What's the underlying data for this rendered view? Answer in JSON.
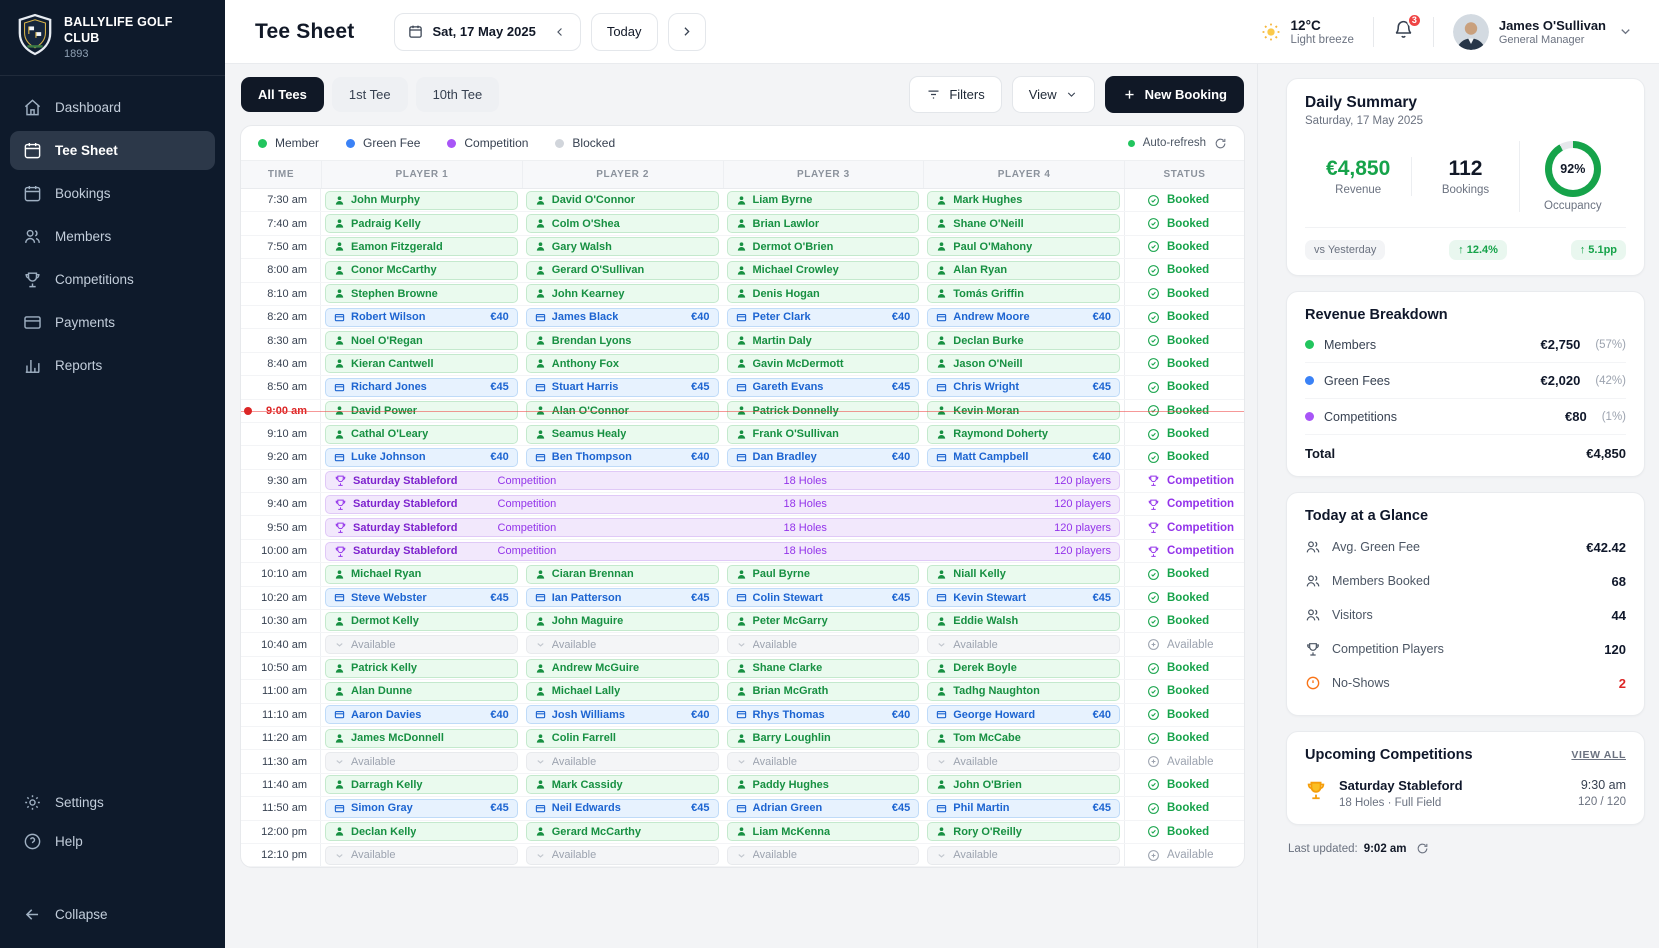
{
  "brand": {
    "name": "BALLYLIFE GOLF CLUB",
    "year": "1893"
  },
  "sidebar": {
    "items": [
      {
        "label": "Dashboard",
        "icon": "home",
        "active": false
      },
      {
        "label": "Tee Sheet",
        "icon": "calendar-check",
        "active": true
      },
      {
        "label": "Bookings",
        "icon": "calendar",
        "active": false
      },
      {
        "label": "Members",
        "icon": "users",
        "active": false
      },
      {
        "label": "Competitions",
        "icon": "trophy",
        "active": false
      },
      {
        "label": "Payments",
        "icon": "credit-card",
        "active": false
      },
      {
        "label": "Reports",
        "icon": "bar-chart",
        "active": false
      }
    ],
    "footer_items": [
      {
        "label": "Settings",
        "icon": "gear"
      },
      {
        "label": "Help",
        "icon": "help"
      }
    ],
    "collapse_label": "Collapse"
  },
  "header": {
    "title": "Tee Sheet",
    "date_label": "Sat, 17 May 2025",
    "today_label": "Today",
    "weather": {
      "temp": "12°C",
      "desc": "Light breeze"
    },
    "notification_count": "3",
    "user": {
      "name": "James O'Sullivan",
      "role": "General Manager"
    }
  },
  "toolbar": {
    "tabs": [
      {
        "label": "All Tees",
        "active": true
      },
      {
        "label": "1st Tee",
        "active": false
      },
      {
        "label": "10th Tee",
        "active": false
      }
    ],
    "filters_label": "Filters",
    "view_label": "View",
    "new_booking_label": "New Booking"
  },
  "legend": {
    "items": [
      {
        "label": "Member",
        "color": "#22c55e"
      },
      {
        "label": "Green Fee",
        "color": "#3b82f6"
      },
      {
        "label": "Competition",
        "color": "#a855f7"
      },
      {
        "label": "Blocked",
        "color": "#d1d5db"
      }
    ],
    "auto_refresh_label": "Auto-refresh"
  },
  "table": {
    "columns": [
      "TIME",
      "PLAYER 1",
      "PLAYER 2",
      "PLAYER 3",
      "PLAYER 4",
      "STATUS"
    ],
    "rows": [
      {
        "time": "7:30 am",
        "type": "players",
        "status": "Booked",
        "status_kind": "booked",
        "players": [
          {
            "kind": "member",
            "name": "John Murphy"
          },
          {
            "kind": "member",
            "name": "David O'Connor"
          },
          {
            "kind": "member",
            "name": "Liam Byrne"
          },
          {
            "kind": "member",
            "name": "Mark Hughes"
          }
        ]
      },
      {
        "time": "7:40 am",
        "type": "players",
        "status": "Booked",
        "status_kind": "booked",
        "players": [
          {
            "kind": "member",
            "name": "Padraig Kelly"
          },
          {
            "kind": "member",
            "name": "Colm O'Shea"
          },
          {
            "kind": "member",
            "name": "Brian Lawlor"
          },
          {
            "kind": "member",
            "name": "Shane O'Neill"
          }
        ]
      },
      {
        "time": "7:50 am",
        "type": "players",
        "status": "Booked",
        "status_kind": "booked",
        "players": [
          {
            "kind": "member",
            "name": "Eamon Fitzgerald"
          },
          {
            "kind": "member",
            "name": "Gary Walsh"
          },
          {
            "kind": "member",
            "name": "Dermot O'Brien"
          },
          {
            "kind": "member",
            "name": "Paul O'Mahony"
          }
        ]
      },
      {
        "time": "8:00 am",
        "type": "players",
        "status": "Booked",
        "status_kind": "booked",
        "players": [
          {
            "kind": "member",
            "name": "Conor McCarthy"
          },
          {
            "kind": "member",
            "name": "Gerard O'Sullivan"
          },
          {
            "kind": "member",
            "name": "Michael Crowley"
          },
          {
            "kind": "member",
            "name": "Alan Ryan"
          }
        ]
      },
      {
        "time": "8:10 am",
        "type": "players",
        "status": "Booked",
        "status_kind": "booked",
        "players": [
          {
            "kind": "member",
            "name": "Stephen Browne"
          },
          {
            "kind": "member",
            "name": "John Kearney"
          },
          {
            "kind": "member",
            "name": "Denis Hogan"
          },
          {
            "kind": "member",
            "name": "Tomás Griffin"
          }
        ]
      },
      {
        "time": "8:20 am",
        "type": "players",
        "status": "Booked",
        "status_kind": "booked",
        "players": [
          {
            "kind": "greenfee",
            "name": "Robert Wilson",
            "fee": "€40"
          },
          {
            "kind": "greenfee",
            "name": "James Black",
            "fee": "€40"
          },
          {
            "kind": "greenfee",
            "name": "Peter Clark",
            "fee": "€40"
          },
          {
            "kind": "greenfee",
            "name": "Andrew Moore",
            "fee": "€40"
          }
        ]
      },
      {
        "time": "8:30 am",
        "type": "players",
        "status": "Booked",
        "status_kind": "booked",
        "players": [
          {
            "kind": "member",
            "name": "Noel O'Regan"
          },
          {
            "kind": "member",
            "name": "Brendan Lyons"
          },
          {
            "kind": "member",
            "name": "Martin Daly"
          },
          {
            "kind": "member",
            "name": "Declan Burke"
          }
        ]
      },
      {
        "time": "8:40 am",
        "type": "players",
        "status": "Booked",
        "status_kind": "booked",
        "players": [
          {
            "kind": "member",
            "name": "Kieran Cantwell"
          },
          {
            "kind": "member",
            "name": "Anthony Fox"
          },
          {
            "kind": "member",
            "name": "Gavin McDermott"
          },
          {
            "kind": "member",
            "name": "Jason O'Neill"
          }
        ]
      },
      {
        "time": "8:50 am",
        "type": "players",
        "status": "Booked",
        "status_kind": "booked",
        "players": [
          {
            "kind": "greenfee",
            "name": "Richard Jones",
            "fee": "€45"
          },
          {
            "kind": "greenfee",
            "name": "Stuart Harris",
            "fee": "€45"
          },
          {
            "kind": "greenfee",
            "name": "Gareth Evans",
            "fee": "€45"
          },
          {
            "kind": "greenfee",
            "name": "Chris Wright",
            "fee": "€45"
          }
        ]
      },
      {
        "time": "9:00 am",
        "type": "players",
        "current": true,
        "status": "Booked",
        "status_kind": "booked",
        "players": [
          {
            "kind": "member",
            "name": "David Power"
          },
          {
            "kind": "member",
            "name": "Alan O'Connor"
          },
          {
            "kind": "member",
            "name": "Patrick Donnelly"
          },
          {
            "kind": "member",
            "name": "Kevin Moran"
          }
        ]
      },
      {
        "time": "9:10 am",
        "type": "players",
        "status": "Booked",
        "status_kind": "booked",
        "players": [
          {
            "kind": "member",
            "name": "Cathal O'Leary"
          },
          {
            "kind": "member",
            "name": "Seamus Healy"
          },
          {
            "kind": "member",
            "name": "Frank O'Sullivan"
          },
          {
            "kind": "member",
            "name": "Raymond Doherty"
          }
        ]
      },
      {
        "time": "9:20 am",
        "type": "players",
        "status": "Booked",
        "status_kind": "booked",
        "players": [
          {
            "kind": "greenfee",
            "name": "Luke Johnson",
            "fee": "€40"
          },
          {
            "kind": "greenfee",
            "name": "Ben Thompson",
            "fee": "€40"
          },
          {
            "kind": "greenfee",
            "name": "Dan Bradley",
            "fee": "€40"
          },
          {
            "kind": "greenfee",
            "name": "Matt Campbell",
            "fee": "€40"
          }
        ]
      },
      {
        "time": "9:30 am",
        "type": "competition",
        "name": "Saturday Stableford",
        "tag": "Competition",
        "holes": "18 Holes",
        "players_count": "120 players",
        "status": "Competition",
        "status_kind": "competition"
      },
      {
        "time": "9:40 am",
        "type": "competition",
        "name": "Saturday Stableford",
        "tag": "Competition",
        "holes": "18 Holes",
        "players_count": "120 players",
        "status": "Competition",
        "status_kind": "competition"
      },
      {
        "time": "9:50 am",
        "type": "competition",
        "name": "Saturday Stableford",
        "tag": "Competition",
        "holes": "18 Holes",
        "players_count": "120 players",
        "status": "Competition",
        "status_kind": "competition"
      },
      {
        "time": "10:00 am",
        "type": "competition",
        "name": "Saturday Stableford",
        "tag": "Competition",
        "holes": "18 Holes",
        "players_count": "120 players",
        "status": "Competition",
        "status_kind": "competition"
      },
      {
        "time": "10:10 am",
        "type": "players",
        "status": "Booked",
        "status_kind": "booked",
        "players": [
          {
            "kind": "member",
            "name": "Michael Ryan"
          },
          {
            "kind": "member",
            "name": "Ciaran Brennan"
          },
          {
            "kind": "member",
            "name": "Paul Byrne"
          },
          {
            "kind": "member",
            "name": "Niall Kelly"
          }
        ]
      },
      {
        "time": "10:20 am",
        "type": "players",
        "status": "Booked",
        "status_kind": "booked",
        "players": [
          {
            "kind": "greenfee",
            "name": "Steve Webster",
            "fee": "€45"
          },
          {
            "kind": "greenfee",
            "name": "Ian Patterson",
            "fee": "€45"
          },
          {
            "kind": "greenfee",
            "name": "Colin Stewart",
            "fee": "€45"
          },
          {
            "kind": "greenfee",
            "name": "Kevin Stewart",
            "fee": "€45"
          }
        ]
      },
      {
        "time": "10:30 am",
        "type": "players",
        "status": "Booked",
        "status_kind": "booked",
        "players": [
          {
            "kind": "member",
            "name": "Dermot Kelly"
          },
          {
            "kind": "member",
            "name": "John Maguire"
          },
          {
            "kind": "member",
            "name": "Peter McGarry"
          },
          {
            "kind": "member",
            "name": "Eddie Walsh"
          }
        ]
      },
      {
        "time": "10:40 am",
        "type": "players",
        "status": "Available",
        "status_kind": "available",
        "players": [
          {
            "kind": "available",
            "label": "Available"
          },
          {
            "kind": "available",
            "label": "Available"
          },
          {
            "kind": "available",
            "label": "Available"
          },
          {
            "kind": "available",
            "label": "Available"
          }
        ]
      },
      {
        "time": "10:50 am",
        "type": "players",
        "status": "Booked",
        "status_kind": "booked",
        "players": [
          {
            "kind": "member",
            "name": "Patrick Kelly"
          },
          {
            "kind": "member",
            "name": "Andrew McGuire"
          },
          {
            "kind": "member",
            "name": "Shane Clarke"
          },
          {
            "kind": "member",
            "name": "Derek Boyle"
          }
        ]
      },
      {
        "time": "11:00 am",
        "type": "players",
        "status": "Booked",
        "status_kind": "booked",
        "players": [
          {
            "kind": "member",
            "name": "Alan Dunne"
          },
          {
            "kind": "member",
            "name": "Michael Lally"
          },
          {
            "kind": "member",
            "name": "Brian McGrath"
          },
          {
            "kind": "member",
            "name": "Tadhg Naughton"
          }
        ]
      },
      {
        "time": "11:10 am",
        "type": "players",
        "status": "Booked",
        "status_kind": "booked",
        "players": [
          {
            "kind": "greenfee",
            "name": "Aaron Davies",
            "fee": "€40"
          },
          {
            "kind": "greenfee",
            "name": "Josh Williams",
            "fee": "€40"
          },
          {
            "kind": "greenfee",
            "name": "Rhys Thomas",
            "fee": "€40"
          },
          {
            "kind": "greenfee",
            "name": "George Howard",
            "fee": "€40"
          }
        ]
      },
      {
        "time": "11:20 am",
        "type": "players",
        "status": "Booked",
        "status_kind": "booked",
        "players": [
          {
            "kind": "member",
            "name": "James McDonnell"
          },
          {
            "kind": "member",
            "name": "Colin Farrell"
          },
          {
            "kind": "member",
            "name": "Barry Loughlin"
          },
          {
            "kind": "member",
            "name": "Tom McCabe"
          }
        ]
      },
      {
        "time": "11:30 am",
        "type": "players",
        "status": "Available",
        "status_kind": "available",
        "players": [
          {
            "kind": "available",
            "label": "Available"
          },
          {
            "kind": "available",
            "label": "Available"
          },
          {
            "kind": "available",
            "label": "Available"
          },
          {
            "kind": "available",
            "label": "Available"
          }
        ]
      },
      {
        "time": "11:40 am",
        "type": "players",
        "status": "Booked",
        "status_kind": "booked",
        "players": [
          {
            "kind": "member",
            "name": "Darragh Kelly"
          },
          {
            "kind": "member",
            "name": "Mark Cassidy"
          },
          {
            "kind": "member",
            "name": "Paddy Hughes"
          },
          {
            "kind": "member",
            "name": "John O'Brien"
          }
        ]
      },
      {
        "time": "11:50 am",
        "type": "players",
        "status": "Booked",
        "status_kind": "booked",
        "players": [
          {
            "kind": "greenfee",
            "name": "Simon Gray",
            "fee": "€45"
          },
          {
            "kind": "greenfee",
            "name": "Neil Edwards",
            "fee": "€45"
          },
          {
            "kind": "greenfee",
            "name": "Adrian Green",
            "fee": "€45"
          },
          {
            "kind": "greenfee",
            "name": "Phil Martin",
            "fee": "€45"
          }
        ]
      },
      {
        "time": "12:00 pm",
        "type": "players",
        "status": "Booked",
        "status_kind": "booked",
        "players": [
          {
            "kind": "member",
            "name": "Declan Kelly"
          },
          {
            "kind": "member",
            "name": "Gerard McCarthy"
          },
          {
            "kind": "member",
            "name": "Liam McKenna"
          },
          {
            "kind": "member",
            "name": "Rory O'Reilly"
          }
        ]
      },
      {
        "time": "12:10 pm",
        "type": "players",
        "status": "Available",
        "status_kind": "available",
        "players": [
          {
            "kind": "available",
            "label": "Available"
          },
          {
            "kind": "available",
            "label": "Available"
          },
          {
            "kind": "available",
            "label": "Available"
          },
          {
            "kind": "available",
            "label": "Available"
          }
        ]
      }
    ]
  },
  "summary": {
    "title": "Daily Summary",
    "date": "Saturday, 17 May 2025",
    "revenue": "€4,850",
    "revenue_label": "Revenue",
    "bookings": "112",
    "bookings_label": "Bookings",
    "occupancy_pct": 92,
    "occupancy": "92%",
    "occupancy_label": "Occupancy",
    "vs_label": "vs Yesterday",
    "revenue_delta": "↑ 12.4%",
    "occupancy_delta": "↑ 5.1pp",
    "accent_green": "#16a34a"
  },
  "breakdown": {
    "title": "Revenue Breakdown",
    "rows": [
      {
        "label": "Members",
        "value": "€2,750",
        "pct": "(57%)",
        "color": "#22c55e"
      },
      {
        "label": "Green Fees",
        "value": "€2,020",
        "pct": "(42%)",
        "color": "#3b82f6"
      },
      {
        "label": "Competitions",
        "value": "€80",
        "pct": "(1%)",
        "color": "#a855f7"
      }
    ],
    "total_label": "Total",
    "total_value": "€4,850"
  },
  "glance": {
    "title": "Today at a Glance",
    "rows": [
      {
        "label": "Avg. Green Fee",
        "value": "€42.42",
        "icon": "users",
        "alert": false
      },
      {
        "label": "Members Booked",
        "value": "68",
        "icon": "users",
        "alert": false
      },
      {
        "label": "Visitors",
        "value": "44",
        "icon": "users",
        "alert": false
      },
      {
        "label": "Competition Players",
        "value": "120",
        "icon": "trophy",
        "alert": false
      },
      {
        "label": "No-Shows",
        "value": "2",
        "icon": "alert-circle",
        "alert": true
      }
    ]
  },
  "upcoming": {
    "title": "Upcoming Competitions",
    "view_all_label": "VIEW ALL",
    "item": {
      "name": "Saturday Stableford",
      "detail": "18 Holes · Full Field",
      "time": "9:30 am",
      "capacity": "120 / 120"
    }
  },
  "footer": {
    "last_updated_label": "Last updated:",
    "last_updated_time": "9:02 am"
  }
}
